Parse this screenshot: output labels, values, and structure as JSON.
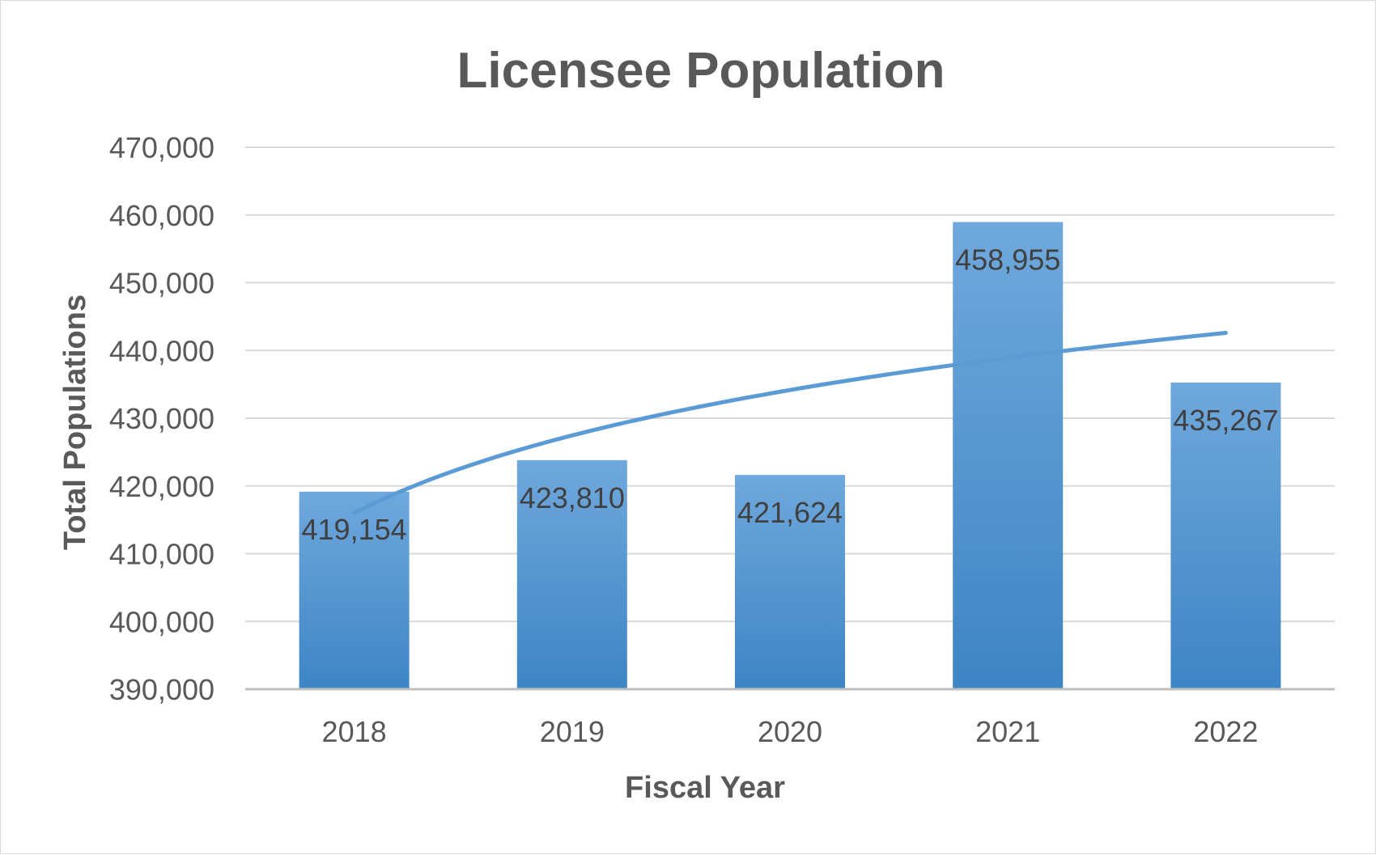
{
  "chart_data": {
    "type": "bar",
    "title": "Licensee Population",
    "xlabel": "Fiscal Year",
    "ylabel": "Total Populations",
    "categories": [
      "2018",
      "2019",
      "2020",
      "2021",
      "2022"
    ],
    "values": [
      419154,
      423810,
      421624,
      458955,
      435267
    ],
    "data_labels": [
      "419,154",
      "423,810",
      "421,624",
      "458,955",
      "435,267"
    ],
    "ylim": [
      390000,
      470000
    ],
    "ytick_values": [
      390000,
      400000,
      410000,
      420000,
      430000,
      440000,
      450000,
      460000,
      470000
    ],
    "ytick_labels": [
      "390,000",
      "400,000",
      "410,000",
      "420,000",
      "430,000",
      "440,000",
      "450,000",
      "460,000",
      "470,000"
    ],
    "grid": true,
    "trendline": {
      "type": "logarithmic",
      "start_value": 416000,
      "end_value": 442600
    },
    "colors": {
      "bar_top": "#6fa8dc",
      "bar_bottom": "#3d85c6",
      "trendline": "#5b9bd5",
      "gridline": "#d9d9d9",
      "axis_line": "#bfbfbf"
    }
  }
}
